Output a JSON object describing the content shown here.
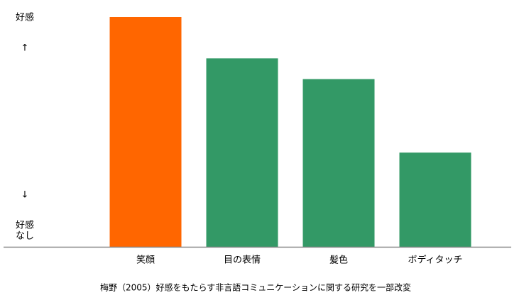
{
  "chart_data": {
    "type": "bar",
    "categories": [
      "笑顔",
      "目の表情",
      "髪色",
      "ボディタッチ"
    ],
    "values": [
      100,
      82,
      73,
      41
    ],
    "colors": [
      "#ff6600",
      "#339966",
      "#339966",
      "#339966"
    ],
    "ylim": [
      0,
      100
    ],
    "y_top_label": "好感",
    "y_up_arrow": "↑",
    "y_down_arrow": "↓",
    "y_bottom_label": [
      "好感",
      "なし"
    ],
    "source": "梅野（2005）好感をもたらす非言語コミュニケーションに関する研究を一部改変"
  }
}
